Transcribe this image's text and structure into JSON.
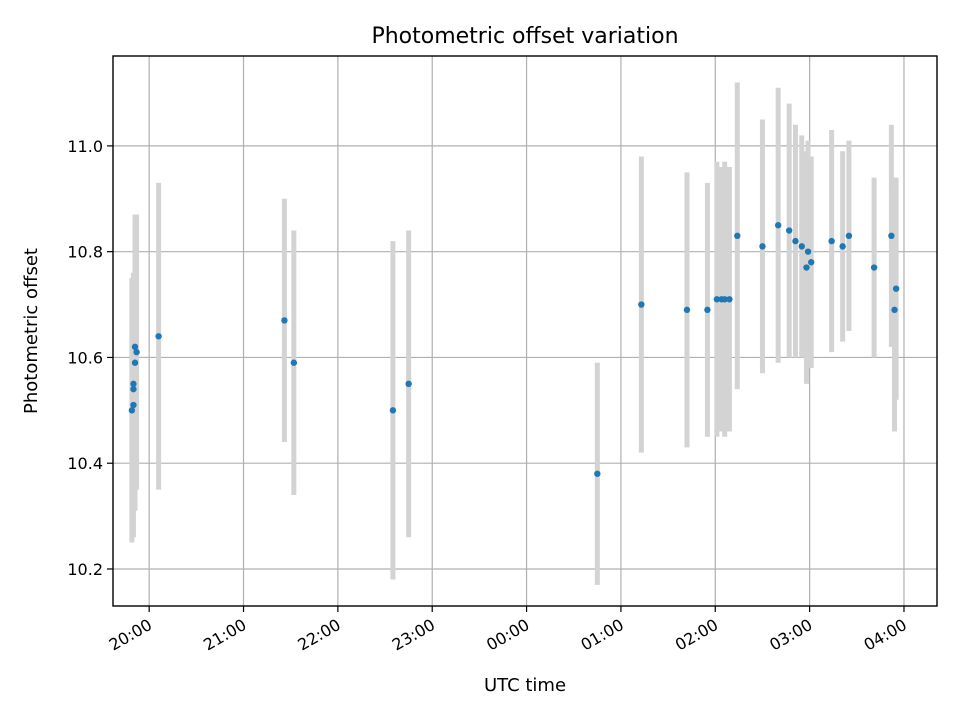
{
  "chart_data": {
    "type": "scatter",
    "title": "Photometric offset variation",
    "xlabel": "UTC time",
    "ylabel": "Photometric offset",
    "xlim": [
      "19:37",
      "04:21"
    ],
    "ylim": [
      10.13,
      11.17
    ],
    "x_ticks": [
      "20:00",
      "21:00",
      "22:00",
      "23:00",
      "00:00",
      "01:00",
      "02:00",
      "03:00",
      "04:00"
    ],
    "y_ticks": [
      10.2,
      10.4,
      10.6,
      10.8,
      11.0
    ],
    "grid": true,
    "colors": {
      "point": "#1f77b4",
      "errorbar": "#d3d3d3"
    },
    "points": [
      {
        "t": "19:49",
        "y": 10.5,
        "err": 0.25
      },
      {
        "t": "19:50",
        "y": 10.51,
        "err": 0.25
      },
      {
        "t": "19:50",
        "y": 10.55,
        "err": 0.2
      },
      {
        "t": "19:50",
        "y": 10.54,
        "err": 0.22
      },
      {
        "t": "19:51",
        "y": 10.62,
        "err": 0.23
      },
      {
        "t": "19:51",
        "y": 10.59,
        "err": 0.28
      },
      {
        "t": "19:52",
        "y": 10.61,
        "err": 0.26
      },
      {
        "t": "20:06",
        "y": 10.64,
        "err": 0.29
      },
      {
        "t": "21:26",
        "y": 10.67,
        "err": 0.23
      },
      {
        "t": "21:32",
        "y": 10.59,
        "err": 0.25
      },
      {
        "t": "22:35",
        "y": 10.5,
        "err": 0.32
      },
      {
        "t": "22:45",
        "y": 10.55,
        "err": 0.29
      },
      {
        "t": "00:45",
        "y": 10.38,
        "err": 0.21
      },
      {
        "t": "01:13",
        "y": 10.7,
        "err": 0.28
      },
      {
        "t": "01:42",
        "y": 10.69,
        "err": 0.26
      },
      {
        "t": "01:55",
        "y": 10.69,
        "err": 0.24
      },
      {
        "t": "02:01",
        "y": 10.71,
        "err": 0.26
      },
      {
        "t": "02:04",
        "y": 10.71,
        "err": 0.25
      },
      {
        "t": "02:06",
        "y": 10.71,
        "err": 0.26
      },
      {
        "t": "02:09",
        "y": 10.71,
        "err": 0.25
      },
      {
        "t": "02:14",
        "y": 10.83,
        "err": 0.29
      },
      {
        "t": "02:30",
        "y": 10.81,
        "err": 0.24
      },
      {
        "t": "02:40",
        "y": 10.85,
        "err": 0.26
      },
      {
        "t": "02:47",
        "y": 10.84,
        "err": 0.24
      },
      {
        "t": "02:51",
        "y": 10.82,
        "err": 0.22
      },
      {
        "t": "02:55",
        "y": 10.81,
        "err": 0.21
      },
      {
        "t": "02:58",
        "y": 10.77,
        "err": 0.22
      },
      {
        "t": "02:59",
        "y": 10.8,
        "err": 0.21
      },
      {
        "t": "03:01",
        "y": 10.78,
        "err": 0.2
      },
      {
        "t": "03:14",
        "y": 10.82,
        "err": 0.21
      },
      {
        "t": "03:21",
        "y": 10.81,
        "err": 0.18
      },
      {
        "t": "03:25",
        "y": 10.83,
        "err": 0.18
      },
      {
        "t": "03:41",
        "y": 10.77,
        "err": 0.17
      },
      {
        "t": "03:52",
        "y": 10.83,
        "err": 0.21
      },
      {
        "t": "03:54",
        "y": 10.69,
        "err": 0.23
      },
      {
        "t": "03:55",
        "y": 10.73,
        "err": 0.21
      }
    ]
  }
}
